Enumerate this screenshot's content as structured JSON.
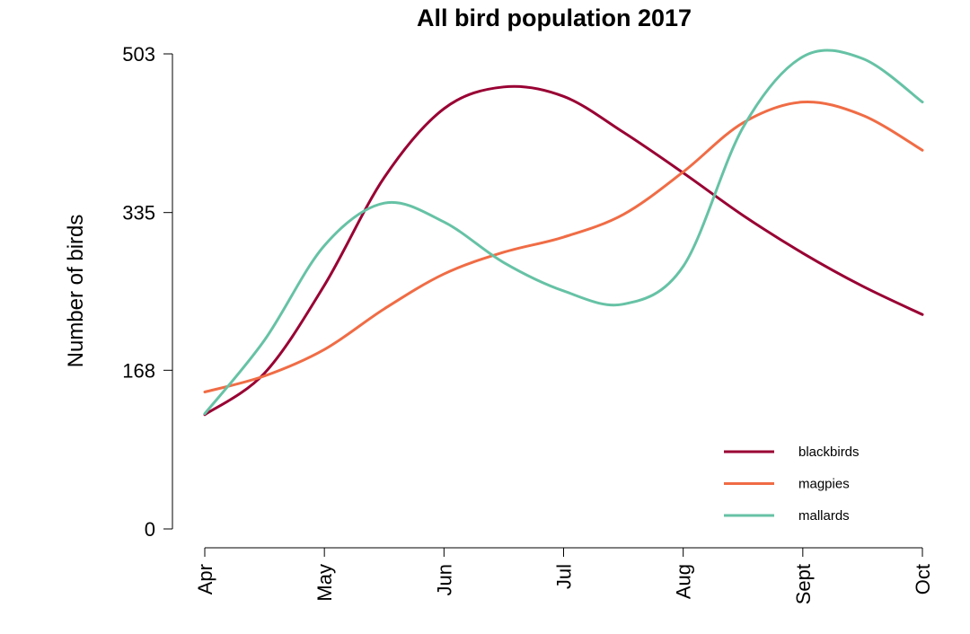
{
  "chart_data": {
    "type": "line",
    "title": "All bird population 2017",
    "xlabel": "",
    "ylabel": "Number of birds",
    "categories": [
      "Apr",
      "May",
      "Jun",
      "Jul",
      "Aug",
      "Sept",
      "Oct"
    ],
    "yticks": [
      0,
      168,
      335,
      503
    ],
    "ylim": [
      0,
      503
    ],
    "grid": false,
    "legend_position": "bottom-right",
    "series": [
      {
        "name": "blackbirds",
        "color": "#990033",
        "x": [
          0,
          0.5,
          1,
          1.5,
          2,
          2.5,
          3,
          3.5,
          4,
          4.5,
          5,
          5.5,
          6
        ],
        "values": [
          121,
          165,
          258,
          372,
          445,
          468,
          458,
          420,
          377,
          332,
          292,
          257,
          227
        ]
      },
      {
        "name": "magpies",
        "color": "#F06C45",
        "x": [
          0,
          0.5,
          1,
          1.5,
          2,
          2.5,
          3,
          3.5,
          4,
          4.5,
          5,
          5.5,
          6
        ],
        "values": [
          145,
          162,
          190,
          233,
          270,
          293,
          309,
          333,
          378,
          430,
          452,
          438,
          401
        ]
      },
      {
        "name": "mallards",
        "color": "#66C2A5",
        "x": [
          0,
          0.5,
          1,
          1.5,
          2,
          2.5,
          3,
          3.5,
          4,
          4.5,
          5,
          5.5,
          6
        ],
        "values": [
          122,
          200,
          300,
          345,
          325,
          282,
          252,
          238,
          278,
          425,
          500,
          498,
          452
        ]
      }
    ]
  }
}
